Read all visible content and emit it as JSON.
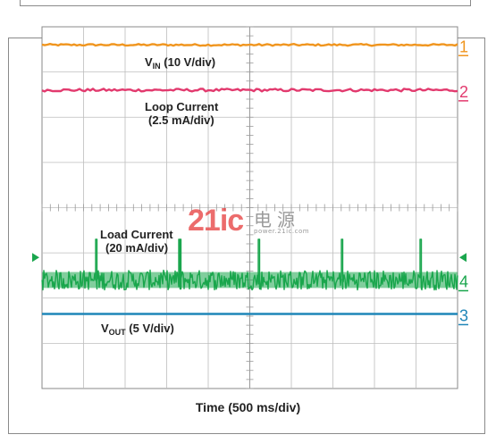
{
  "chart_data": {
    "type": "line",
    "xlabel": "Time (500 ms/div)",
    "grid": true,
    "divisions": {
      "x": 10,
      "y": 8
    },
    "colors": {
      "background": "#ffffff",
      "grid": "#bdbdbd",
      "frame": "#8a8a8a",
      "text": "#222222"
    },
    "series": [
      {
        "id": "vin",
        "label_main": "V",
        "label_sub": "IN",
        "label_rest": " (10 V/div)",
        "color": "#f0951e",
        "channel": "1",
        "level_div": 7.6,
        "noise_div": 0.02,
        "pulses": []
      },
      {
        "id": "loop",
        "label_lines": [
          "Loop Current",
          "(2.5 mA/div)"
        ],
        "color": "#e23a6e",
        "channel": "2",
        "level_div": 6.6,
        "noise_div": 0.03,
        "pulses": []
      },
      {
        "id": "load",
        "label_lines": [
          "Load Current",
          "(20 mA/div)"
        ],
        "color": "#1aa64d",
        "channel": "4",
        "level_div": 2.4,
        "noise_div": 0.22,
        "pulses": [
          1.3,
          3.3,
          5.2,
          7.2,
          9.1
        ],
        "pulse_height_div": 0.9
      },
      {
        "id": "vout",
        "label_main": "V",
        "label_sub": "OUT",
        "label_rest": " (5 V/div)",
        "color": "#1f86b8",
        "channel": "3",
        "level_div": 1.65,
        "noise_div": 0.0,
        "pulses": []
      }
    ],
    "trigger_marker_color": "#1aa64d"
  }
}
